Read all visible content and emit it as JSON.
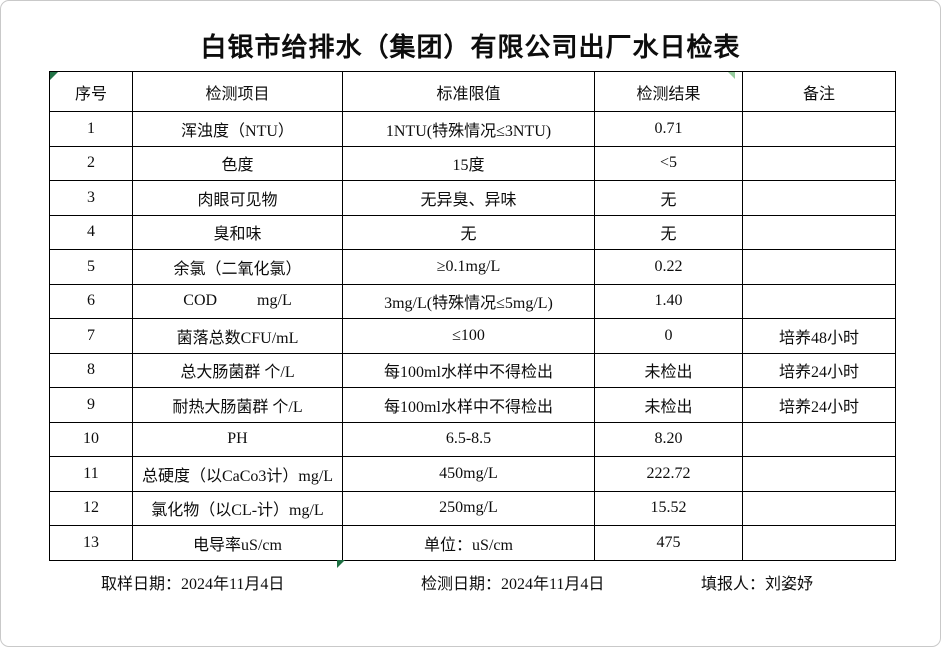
{
  "page": {
    "title": "白银市给排水（集团）有限公司出厂水日检表"
  },
  "table": {
    "headers": [
      "序号",
      "检测项目",
      "标准限值",
      "检测结果",
      "备注"
    ],
    "rows": [
      {
        "no": "1",
        "item": "浑浊度（NTU）",
        "limit": "1NTU(特殊情况≤3NTU)",
        "result": "0.71",
        "remark": ""
      },
      {
        "no": "2",
        "item": "色度",
        "limit": "15度",
        "result": "<5",
        "remark": ""
      },
      {
        "no": "3",
        "item": "肉眼可见物",
        "limit": "无异臭、异味",
        "result": "无",
        "remark": ""
      },
      {
        "no": "4",
        "item": "臭和味",
        "limit": "无",
        "result": "无",
        "remark": ""
      },
      {
        "no": "5",
        "item": "余氯（二氧化氯）",
        "limit": "≥0.1mg/L",
        "result": "0.22",
        "remark": ""
      },
      {
        "no": "6",
        "item": "COD          mg/L",
        "limit": "3mg/L(特殊情况≤5mg/L)",
        "result": "1.40",
        "remark": ""
      },
      {
        "no": "7",
        "item": "菌落总数CFU/mL",
        "limit": "≤100",
        "result": "0",
        "remark": "培养48小时"
      },
      {
        "no": "8",
        "item": "总大肠菌群 个/L",
        "limit": "每100ml水样中不得检出",
        "result": "未检出",
        "remark": "培养24小时"
      },
      {
        "no": "9",
        "item": "耐热大肠菌群 个/L",
        "limit": "每100ml水样中不得检出",
        "result": "未检出",
        "remark": "培养24小时"
      },
      {
        "no": "10",
        "item": "PH",
        "limit": "6.5-8.5",
        "result": "8.20",
        "remark": ""
      },
      {
        "no": "11",
        "item": "总硬度（以CaCo3计）mg/L",
        "limit": "450mg/L",
        "result": "222.72",
        "remark": ""
      },
      {
        "no": "12",
        "item": "氯化物（以CL-计）mg/L",
        "limit": "250mg/L",
        "result": "15.52",
        "remark": ""
      },
      {
        "no": "13",
        "item": "电导率uS/cm",
        "limit": "单位：uS/cm",
        "result": "475",
        "remark": ""
      }
    ]
  },
  "footer": {
    "sampling_date": "取样日期：2024年11月4日",
    "test_date": "检测日期：2024年11月4日",
    "reporter": "填报人：刘姿妤"
  },
  "colors": {
    "marker_green": "#217346",
    "border_black": "#000000"
  }
}
